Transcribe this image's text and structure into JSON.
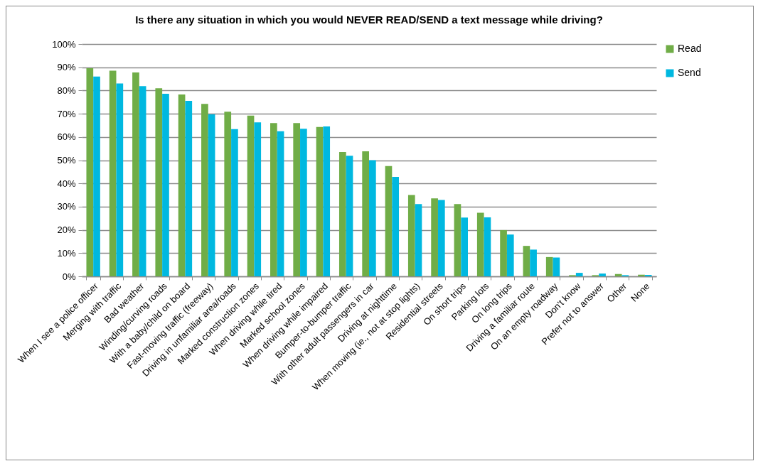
{
  "chart_data": {
    "type": "bar",
    "title": "Is there any situation in which you would NEVER READ/SEND a text message while driving?",
    "categories": [
      "When I see a police officer",
      "Merging with traffic",
      "Bad weather",
      "Winding/curving roads",
      "With a baby/child on board",
      "Fast-moving traffic (freeway)",
      "Driving in unfamiliar area/roads",
      "Marked construction zones",
      "When driving while tired",
      "Marked school zones",
      "When driving while impaired",
      "Bumper-to-bumper traffic",
      "With other adult passengers in car",
      "Driving at nighttime",
      "When moving (ie., not at stop lights)",
      "Residential streets",
      "On short trips",
      "Parking lots",
      "On long trips",
      "Driving a familiar route",
      "On an empty roadway",
      "Don't know",
      "Prefer not to answer",
      "Other",
      "None"
    ],
    "series": [
      {
        "name": "Read",
        "color": "#70ad47",
        "values": [
          89.6,
          88.5,
          87.8,
          81,
          78.3,
          74.2,
          70.9,
          69.2,
          66,
          66,
          64.3,
          53.5,
          53.8,
          47.5,
          35,
          33.6,
          31.1,
          27.4,
          19.9,
          13.1,
          8.3,
          0.5,
          0.5,
          1,
          0.7
        ]
      },
      {
        "name": "Send",
        "color": "#00b8e0",
        "values": [
          86,
          83,
          81.9,
          78.6,
          75.5,
          69.7,
          63.4,
          66.3,
          62.5,
          63.5,
          64.5,
          51.9,
          50,
          42.8,
          31.1,
          32.9,
          25.3,
          25.4,
          18,
          11.5,
          8.1,
          1.5,
          1.2,
          0.5,
          0.6
        ]
      }
    ],
    "ylim": [
      0,
      100
    ],
    "yticks": [
      {
        "value": 0,
        "label": "0%"
      },
      {
        "value": 10,
        "label": "10%"
      },
      {
        "value": 20,
        "label": "20%"
      },
      {
        "value": 30,
        "label": "30%"
      },
      {
        "value": 40,
        "label": "40%"
      },
      {
        "value": 50,
        "label": "50%"
      },
      {
        "value": 60,
        "label": "60%"
      },
      {
        "value": 70,
        "label": "70%"
      },
      {
        "value": 80,
        "label": "80%"
      },
      {
        "value": 90,
        "label": "90%"
      },
      {
        "value": 100,
        "label": "100%"
      }
    ],
    "grid": "y",
    "legend": "right"
  }
}
